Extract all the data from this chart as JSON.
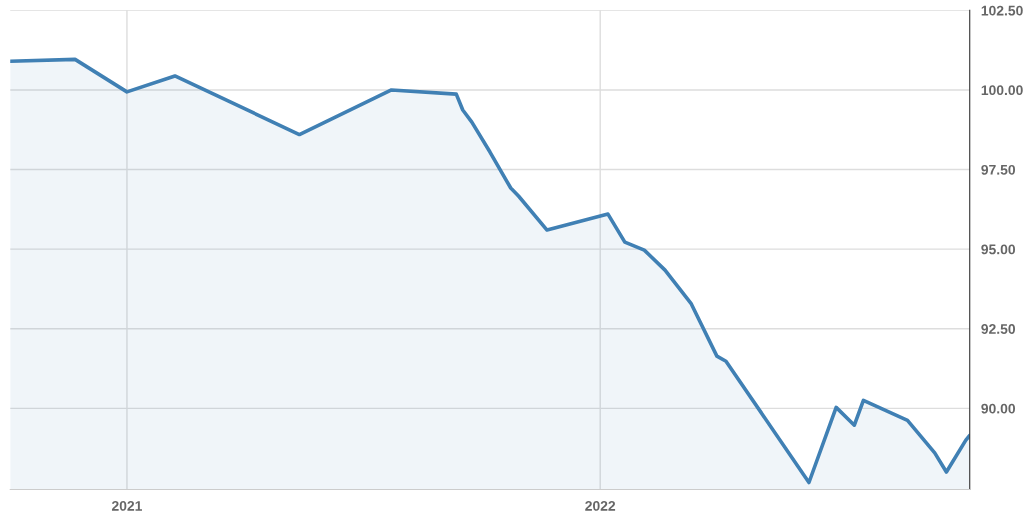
{
  "chart_data": {
    "type": "area",
    "x": [
      "2020-10-03",
      "2020-11-22",
      "2021-01-01",
      "2021-02-07",
      "2021-05-14",
      "2021-07-24",
      "2021-09-12",
      "2021-09-17",
      "2021-09-24",
      "2021-10-08",
      "2021-10-24",
      "2021-10-30",
      "2021-11-21",
      "2022-01-07",
      "2022-01-20",
      "2022-02-04",
      "2022-02-20",
      "2022-03-12",
      "2022-04-01",
      "2022-04-08",
      "2022-06-11",
      "2022-07-02",
      "2022-07-16",
      "2022-07-23",
      "2022-08-26",
      "2022-09-16",
      "2022-09-25",
      "2022-10-10",
      "2022-10-13"
    ],
    "series": [
      {
        "color": "#4080b4",
        "values": [
          100.9,
          100.96,
          99.94,
          100.44,
          98.6,
          100.0,
          99.87,
          99.37,
          98.99,
          98.05,
          96.92,
          96.67,
          95.6,
          96.1,
          95.22,
          94.97,
          94.34,
          93.3,
          91.64,
          91.48,
          87.67,
          90.03,
          89.47,
          90.25,
          89.62,
          88.6,
          88.0,
          89.0,
          89.15
        ]
      }
    ],
    "xlim": [
      "2020-10-03",
      "2022-10-13"
    ],
    "xticks": [
      {
        "value": "2021-01-01",
        "label": "2021"
      },
      {
        "value": "2022-01-01",
        "label": "2022"
      }
    ],
    "ylim": [
      87.45,
      102.5
    ],
    "yticks": [
      {
        "value": 90,
        "label": "90.00"
      },
      {
        "value": 92.5,
        "label": "92.50"
      },
      {
        "value": 95,
        "label": "95.00"
      },
      {
        "value": 97.5,
        "label": "97.50"
      },
      {
        "value": 100,
        "label": "100.00"
      },
      {
        "value": 102.5,
        "label": "102.50"
      }
    ],
    "grid": true
  }
}
